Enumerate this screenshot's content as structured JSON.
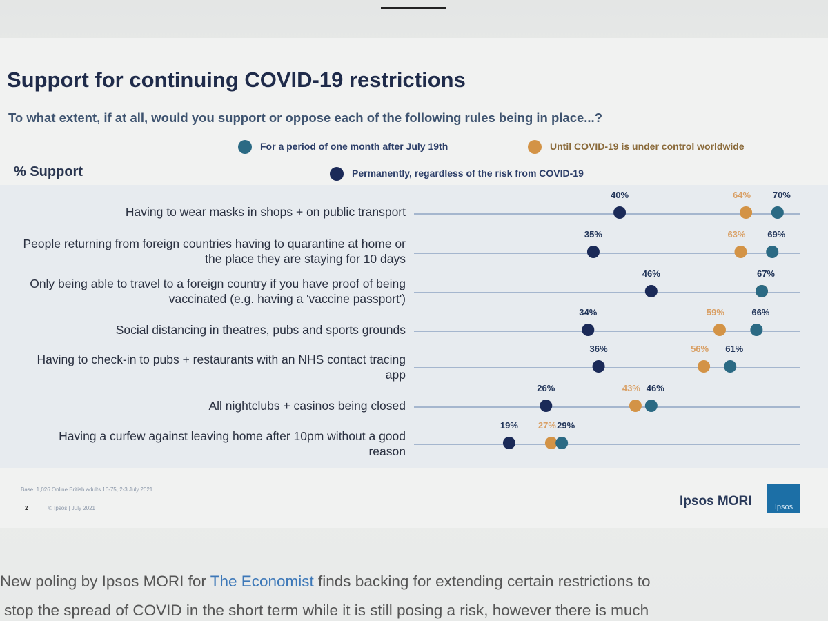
{
  "chart_data": {
    "type": "dot",
    "title": "Support for continuing COVID-19 restrictions",
    "subtitle": "To what extent, if at all, would you support or oppose each of the following rules being in place...?",
    "value_axis_label": "% Support",
    "categories": [
      "Having to wear masks in shops + on public transport",
      "People returning from foreign countries having to quarantine at home or the place they are staying for 10 days",
      "Only being able to travel to a foreign country if you have proof of being vaccinated (e.g. having a 'vaccine passport')",
      "Social distancing in theatres, pubs and sports grounds",
      "Having to check-in to pubs + restaurants with an NHS contact tracing app",
      "All nightclubs + casinos being closed",
      "Having a curfew against leaving home after 10pm without a good reason"
    ],
    "series": [
      {
        "name": "For a period of one month after July 19th",
        "color": "#2b6a84",
        "values": [
          70,
          69,
          67,
          66,
          61,
          46,
          29
        ],
        "value_labels": [
          "70%",
          "69%",
          "67%",
          "66%",
          "61%",
          "46%",
          "29%"
        ]
      },
      {
        "name": "Until COVID-19 is under control worldwide",
        "color": "#d39346",
        "values": [
          64,
          63,
          67,
          59,
          56,
          43,
          27
        ],
        "value_labels": [
          "64%",
          "63%",
          null,
          "59%",
          "56%",
          "43%",
          "27%"
        ]
      },
      {
        "name": "Permanently, regardless of the risk from COVID-19",
        "color": "#1b2a58",
        "values": [
          40,
          35,
          46,
          34,
          36,
          26,
          19
        ],
        "value_labels": [
          "40%",
          "35%",
          "46%",
          "34%",
          "36%",
          "26%",
          "19%"
        ]
      }
    ],
    "xlim": [
      0,
      75
    ]
  },
  "footer": {
    "base": "Base: 1,026 Online British adults 16-75, 2-3 July 2021",
    "page": "2",
    "copyright": "© Ipsos | July 2021",
    "brand": "Ipsos MORI",
    "logo": "Ipsos"
  },
  "article": {
    "parts": [
      "New poling by Ipsos MORI for ",
      "The Economist",
      " finds backing for extending certain restrictions to"
    ],
    "next_line": "stop the spread of COVID in the short term while it is still posing a risk, however there is much"
  }
}
